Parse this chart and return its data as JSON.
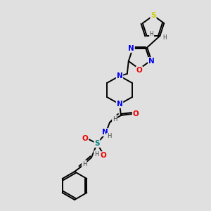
{
  "bg_color": "#e0e0e0",
  "bond_color": "#000000",
  "lw": 1.4,
  "atom_colors": {
    "N": "#0000ee",
    "O": "#ee0000",
    "S_thio": "#cccc00",
    "S_vinyl": "#008080",
    "H": "#404040"
  },
  "figsize": [
    3.0,
    3.0
  ],
  "dpi": 100,
  "xlim": [
    0,
    300
  ],
  "ylim": [
    0,
    300
  ]
}
